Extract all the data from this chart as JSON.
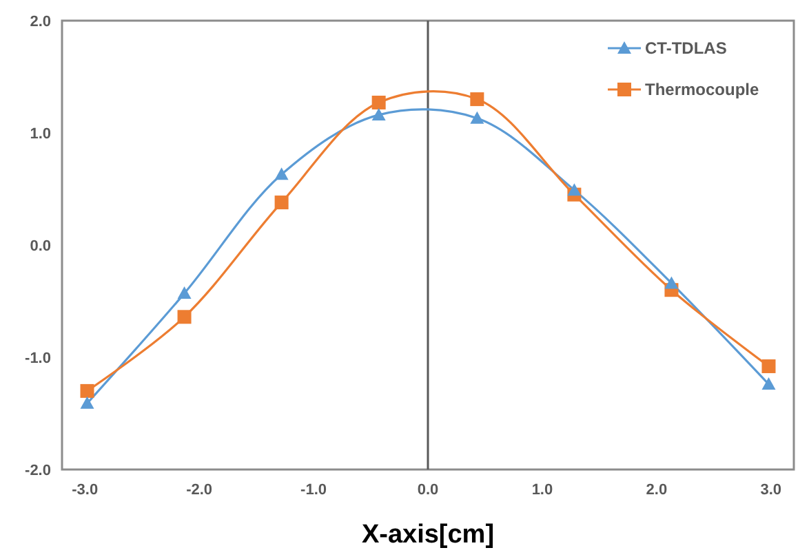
{
  "chart_data": {
    "type": "line",
    "xlabel": "X-axis[cm]",
    "xlim": [
      -3.2,
      3.2
    ],
    "xticks": [
      {
        "value": -3,
        "label": "-3.0"
      },
      {
        "value": -2,
        "label": "-2.0"
      },
      {
        "value": -1,
        "label": "-1.0"
      },
      {
        "value": 0,
        "label": "0.0"
      },
      {
        "value": 1,
        "label": "1.0"
      },
      {
        "value": 2,
        "label": "2.0"
      },
      {
        "value": 3,
        "label": "3.0"
      }
    ],
    "ylim": [
      -2,
      2
    ],
    "yticks": [
      {
        "value": -2,
        "label": "-2.0"
      },
      {
        "value": -1,
        "label": "-1.0"
      },
      {
        "value": 0,
        "label": "0.0"
      },
      {
        "value": 1,
        "label": "1.0"
      },
      {
        "value": 2,
        "label": "2.0"
      }
    ],
    "legend": "top right",
    "x": [
      -2.98,
      -2.13,
      -1.28,
      -0.43,
      0.43,
      1.28,
      2.13,
      2.98
    ],
    "series": [
      {
        "name": "CT-TDLAS",
        "color": "#5b9bd5",
        "marker": "triangle",
        "values": [
          -1.41,
          -0.43,
          0.63,
          1.16,
          1.13,
          0.49,
          -0.34,
          -1.24
        ]
      },
      {
        "name": "Thermocouple",
        "color": "#ed7d31",
        "marker": "square",
        "values": [
          -1.3,
          -0.64,
          0.38,
          1.27,
          1.3,
          0.45,
          -0.4,
          -1.08
        ]
      }
    ]
  }
}
